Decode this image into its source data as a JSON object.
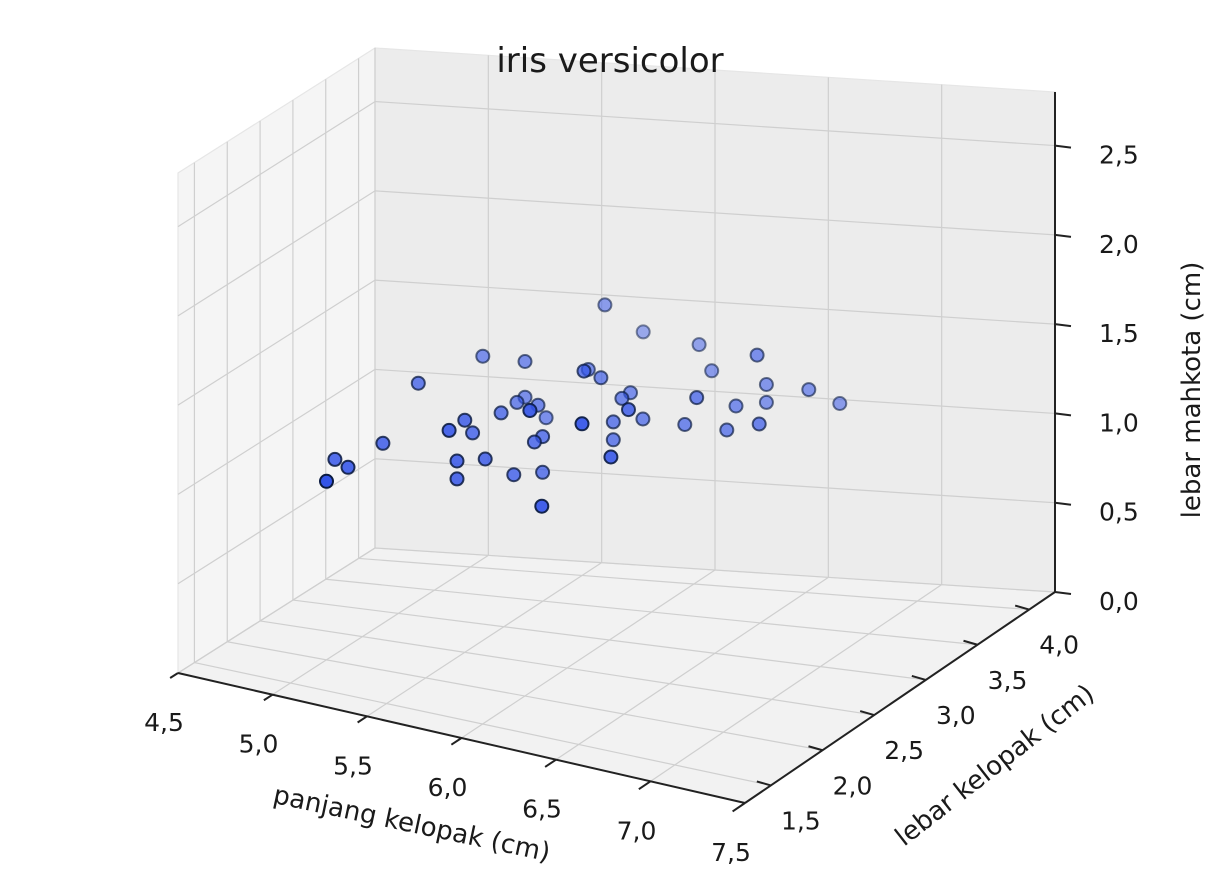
{
  "chart_data": {
    "type": "scatter",
    "projection": "3d",
    "title": "iris versicolor",
    "xlabel": "panjang kelopak (cm)",
    "ylabel": "lebar kelopak (cm)",
    "zlabel": "lebar mahkota (cm)",
    "xlim": [
      4.5,
      7.5
    ],
    "ylim": [
      1.25,
      4.25
    ],
    "zlim": [
      0.0,
      2.8
    ],
    "x_ticks": [
      "4,5",
      "5,0",
      "5,5",
      "6,0",
      "6,5",
      "7,0",
      "7,5"
    ],
    "y_ticks": [
      "1,5",
      "2,0",
      "2,5",
      "3,0",
      "3,5",
      "4,0"
    ],
    "z_ticks": [
      "0,0",
      "0,5",
      "1,0",
      "1,5",
      "2,0",
      "2,5"
    ],
    "grid": true,
    "marker_color": "#3354e8",
    "edge_color": "#0a1a40",
    "series": [
      {
        "values": [
          [
            7.0,
            3.2,
            1.4
          ],
          [
            6.4,
            3.2,
            1.5
          ],
          [
            6.9,
            3.1,
            1.5
          ],
          [
            5.5,
            2.3,
            1.3
          ],
          [
            6.5,
            2.8,
            1.5
          ],
          [
            5.7,
            2.8,
            1.3
          ],
          [
            6.3,
            3.3,
            1.6
          ],
          [
            4.9,
            2.4,
            1.0
          ],
          [
            6.6,
            2.9,
            1.3
          ],
          [
            5.2,
            2.7,
            1.4
          ],
          [
            5.0,
            2.0,
            1.0
          ],
          [
            5.9,
            3.0,
            1.5
          ],
          [
            6.0,
            2.2,
            1.0
          ],
          [
            6.1,
            2.9,
            1.4
          ],
          [
            5.6,
            2.9,
            1.3
          ],
          [
            6.7,
            3.1,
            1.4
          ],
          [
            5.6,
            3.0,
            1.5
          ],
          [
            5.8,
            2.7,
            1.0
          ],
          [
            6.2,
            2.2,
            1.5
          ],
          [
            5.6,
            2.5,
            1.1
          ],
          [
            5.9,
            3.2,
            1.8
          ],
          [
            6.1,
            2.8,
            1.3
          ],
          [
            6.3,
            2.5,
            1.5
          ],
          [
            6.1,
            2.8,
            1.2
          ],
          [
            6.4,
            2.9,
            1.3
          ],
          [
            6.6,
            3.0,
            1.4
          ],
          [
            6.8,
            2.8,
            1.4
          ],
          [
            6.7,
            3.0,
            1.7
          ],
          [
            6.0,
            2.9,
            1.5
          ],
          [
            5.7,
            2.6,
            1.0
          ],
          [
            5.5,
            2.4,
            1.1
          ],
          [
            5.5,
            2.4,
            1.0
          ],
          [
            5.8,
            2.7,
            1.2
          ],
          [
            6.0,
            2.7,
            1.6
          ],
          [
            5.4,
            3.0,
            1.5
          ],
          [
            6.0,
            3.4,
            1.6
          ],
          [
            6.7,
            3.1,
            1.5
          ],
          [
            6.3,
            2.3,
            1.3
          ],
          [
            5.6,
            3.0,
            1.3
          ],
          [
            5.5,
            2.5,
            1.3
          ],
          [
            5.5,
            2.6,
            1.2
          ],
          [
            6.1,
            3.0,
            1.4
          ],
          [
            5.8,
            2.6,
            1.2
          ],
          [
            5.0,
            2.3,
            1.0
          ],
          [
            5.6,
            2.7,
            1.3
          ],
          [
            5.7,
            3.0,
            1.2
          ],
          [
            5.7,
            2.9,
            1.3
          ],
          [
            6.2,
            2.9,
            1.3
          ],
          [
            5.1,
            2.5,
            1.1
          ],
          [
            5.7,
            2.8,
            1.3
          ]
        ]
      }
    ]
  }
}
